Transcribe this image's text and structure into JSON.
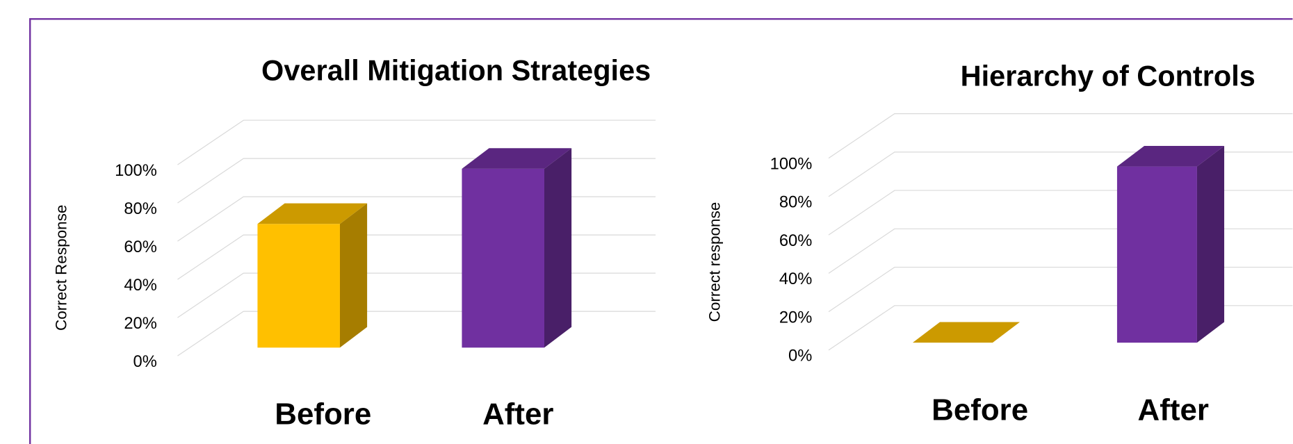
{
  "chart_data": [
    {
      "type": "bar3d",
      "title": "Overall Mitigation Strategies",
      "y_label": "Correct  Response",
      "categories": [
        "Before",
        "After"
      ],
      "values": [
        65,
        94
      ],
      "colors": [
        "#ffc000",
        "#7030a0"
      ],
      "ylim": [
        0,
        100
      ],
      "yticks": [
        {
          "value": 0,
          "label": "0%"
        },
        {
          "value": 20,
          "label": "20%"
        },
        {
          "value": 40,
          "label": "40%"
        },
        {
          "value": 60,
          "label": "60%"
        },
        {
          "value": 80,
          "label": "80%"
        },
        {
          "value": 100,
          "label": "100%"
        }
      ],
      "grid": true
    },
    {
      "type": "bar3d",
      "title": "Hierarchy of Controls",
      "y_label": "Correct response",
      "categories": [
        "Before",
        "After"
      ],
      "values": [
        0,
        93
      ],
      "colors": [
        "#ffc000",
        "#7030a0"
      ],
      "ylim": [
        0,
        100
      ],
      "yticks": [
        {
          "value": 0,
          "label": "0%"
        },
        {
          "value": 20,
          "label": "20%"
        },
        {
          "value": 40,
          "label": "40%"
        },
        {
          "value": 60,
          "label": "60%"
        },
        {
          "value": 80,
          "label": "80%"
        },
        {
          "value": 100,
          "label": "100%"
        }
      ],
      "grid": true
    }
  ]
}
